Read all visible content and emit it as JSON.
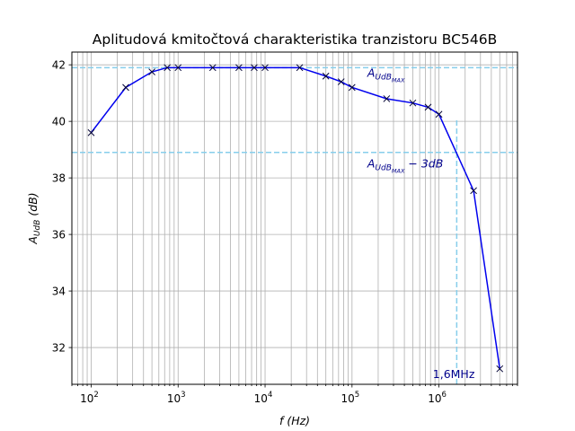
{
  "chart_data": {
    "type": "line",
    "title": "Aplitudová kmitočtová charakteristika tranzistoru BC546B",
    "xlabel": "f (Hz)",
    "ylabel": "A_UdB (dB)",
    "x_scale": "log",
    "xlim": [
      60,
      8000000
    ],
    "ylim": [
      30.7,
      42.45
    ],
    "grid": {
      "x": "major+minor",
      "y": "major"
    },
    "xticks_major": [
      100,
      1000,
      10000,
      100000,
      1000000
    ],
    "yticks": [
      32,
      34,
      36,
      38,
      40,
      42
    ],
    "series": [
      {
        "color": "#0000ee",
        "marker": "x",
        "marker_color": "#000033",
        "points": [
          [
            100,
            39.6
          ],
          [
            250,
            41.2
          ],
          [
            500,
            41.75
          ],
          [
            750,
            41.9
          ],
          [
            1000,
            41.9
          ],
          [
            2500,
            41.9
          ],
          [
            5000,
            41.9
          ],
          [
            7500,
            41.9
          ],
          [
            10000,
            41.9
          ],
          [
            25000,
            41.9
          ],
          [
            50000,
            41.6
          ],
          [
            75000,
            41.4
          ],
          [
            100000,
            41.2
          ],
          [
            250000,
            40.8
          ],
          [
            500000,
            40.65
          ],
          [
            750000,
            40.5
          ],
          [
            1000000,
            40.25
          ],
          [
            2500000,
            37.55
          ],
          [
            5000000,
            31.25
          ]
        ]
      }
    ],
    "reference_lines": {
      "color": "#87ceeb",
      "hlines": [
        41.9,
        38.9
      ],
      "vlines": [
        {
          "x": 1600000,
          "ymax": 40.1
        }
      ]
    },
    "annotations": {
      "max_label": {
        "main": "A",
        "sub": "UdB",
        "subsub": "MAX",
        "x": 150000,
        "y": 41.7
      },
      "minus3db_label": {
        "main": "A",
        "sub": "UdB",
        "subsub": "MAX",
        "suffix": " − 3dB",
        "x": 150000,
        "y": 38.5
      },
      "freq_label": {
        "text": "1,6MHz",
        "x": 850000,
        "y": 31.05
      }
    }
  }
}
